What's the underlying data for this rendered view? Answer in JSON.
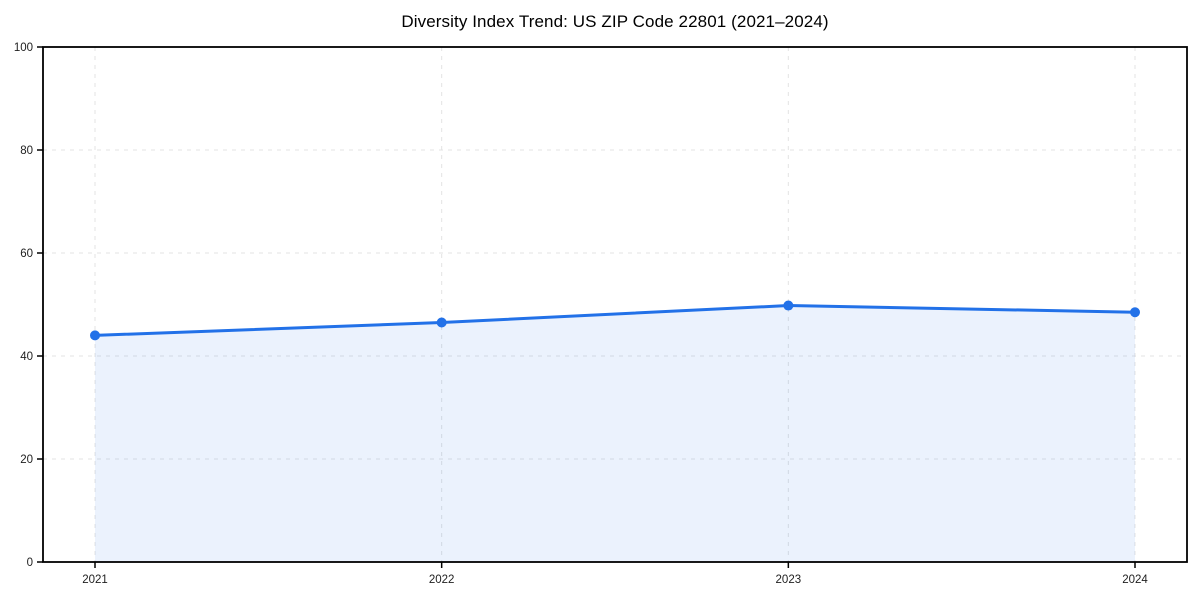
{
  "page": {
    "background": "#ffffff"
  },
  "chart_data": {
    "type": "line",
    "title": "Diversity Index Trend: US ZIP Code 22801 (2021–2024)",
    "x": [
      "2021",
      "2022",
      "2023",
      "2024"
    ],
    "values": [
      44,
      46.5,
      49.8,
      48.5
    ],
    "xlabel": "",
    "ylabel": "",
    "ylim": [
      0,
      100
    ],
    "yticks": [
      0,
      20,
      40,
      60,
      80,
      100
    ],
    "grid": true,
    "legend_position": "none",
    "area_fill": true,
    "marker": "circle",
    "colors": {
      "line": "#2271e8",
      "fill": "rgba(34,113,232,0.09)",
      "grid": "#e3e3e3",
      "axis": "#000000",
      "text": "#1e1e1e"
    }
  }
}
